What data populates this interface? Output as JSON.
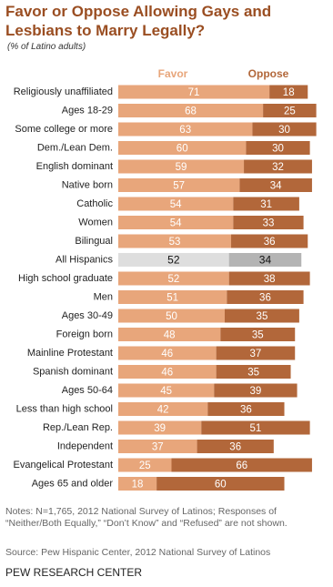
{
  "chart_data": {
    "type": "stacked-bar",
    "title": "Favor or Oppose Allowing Gays and Lesbians to Marry Legally?",
    "subtitle": "(% of Latino adults)",
    "categories": [
      "Religiously unaffiliated",
      "Ages 18-29",
      "Some college or more",
      "Dem./Lean Dem.",
      "English dominant",
      "Native born",
      "Catholic",
      "Women",
      "Bilingual",
      "All Hispanics",
      "High school graduate",
      "Men",
      "Ages 30-49",
      "Foreign born",
      "Mainline Protestant",
      "Spanish dominant",
      "Ages 50-64",
      "Less than high school",
      "Rep./Lean Rep.",
      "Independent",
      "Evangelical Protestant",
      "Ages 65 and older"
    ],
    "series": [
      {
        "name": "Favor",
        "color": "#e8a67b",
        "highlight_color": "#dedede",
        "values": [
          71,
          68,
          63,
          60,
          59,
          57,
          54,
          54,
          53,
          52,
          52,
          51,
          50,
          48,
          46,
          46,
          45,
          42,
          39,
          37,
          25,
          18
        ]
      },
      {
        "name": "Oppose",
        "color": "#b2673a",
        "highlight_color": "#b4b4b4",
        "values": [
          18,
          25,
          30,
          30,
          32,
          34,
          31,
          33,
          36,
          34,
          38,
          36,
          35,
          35,
          37,
          35,
          39,
          36,
          51,
          36,
          66,
          60
        ]
      }
    ],
    "highlight_index": 9,
    "notes": "Notes: N=1,765, 2012 National Survey of Latinos; Responses of “Neither/Both Equally,” “Don’t Know” and “Refused” are not shown.",
    "source": "Source: Pew Hispanic Center, 2012 National Survey of Latinos",
    "credit": "PEW RESEARCH CENTER"
  }
}
